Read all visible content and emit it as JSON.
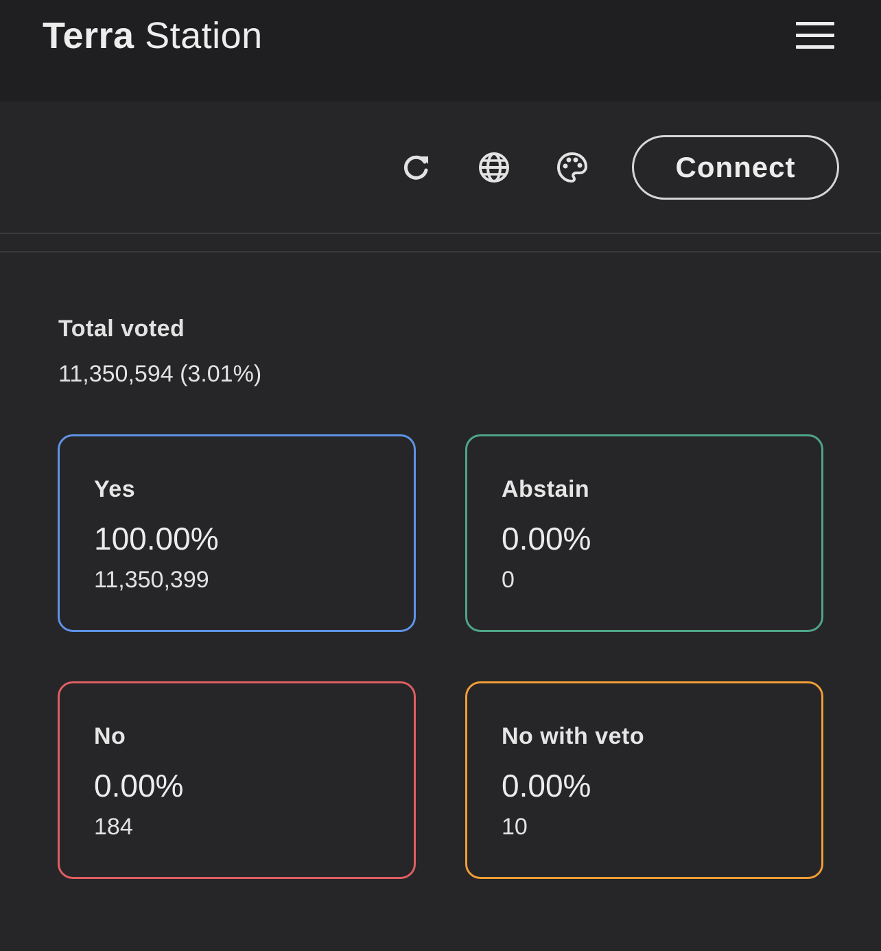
{
  "header": {
    "brand_bold": "Terra",
    "brand_light": " Station",
    "menu_icon": "hamburger-menu-icon"
  },
  "toolbar": {
    "icons": [
      "refresh-icon",
      "globe-icon",
      "palette-icon"
    ],
    "connect_label": "Connect"
  },
  "votes": {
    "total_label": "Total voted",
    "total_value": "11,350,594 (3.01%)",
    "options": [
      {
        "label": "Yes",
        "percent": "100.00%",
        "count": "11,350,399",
        "color": "#5f93e6"
      },
      {
        "label": "Abstain",
        "percent": "0.00%",
        "count": "0",
        "color": "#4fa587"
      },
      {
        "label": "No",
        "percent": "0.00%",
        "count": "184",
        "color": "#df5e62"
      },
      {
        "label": "No with veto",
        "percent": "0.00%",
        "count": "10",
        "color": "#ef9d35"
      }
    ]
  }
}
